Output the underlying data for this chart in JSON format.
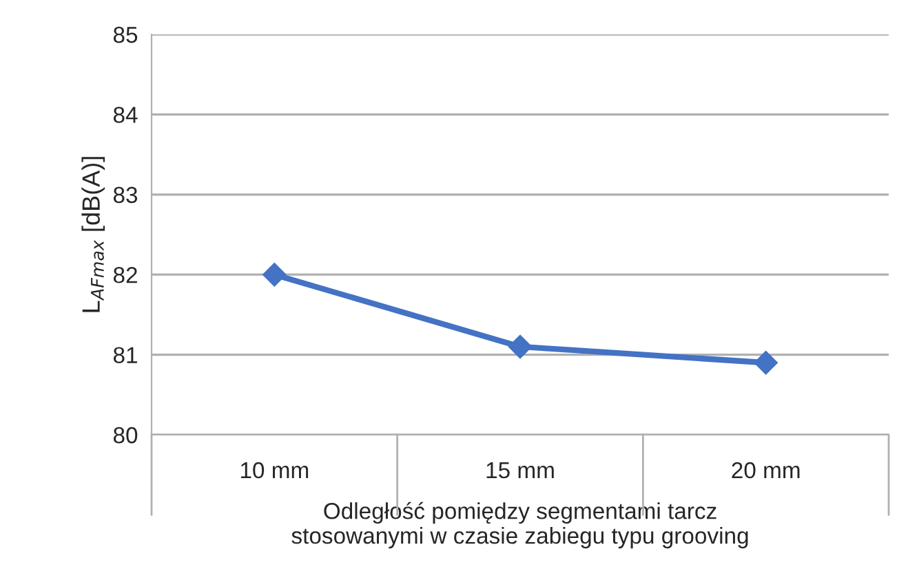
{
  "chart_data": {
    "type": "line",
    "categories": [
      "10 mm",
      "15 mm",
      "20 mm"
    ],
    "values": [
      82.0,
      81.1,
      80.9
    ],
    "color": "#4472c4",
    "ylim": [
      80,
      85
    ],
    "yticks": [
      80,
      81,
      82,
      83,
      84,
      85
    ],
    "ylabel": "L$_{AFmax}$ [dB(A)]",
    "xlabel": "Odległość pomiędzy segmentami tarcz\nstosowanymi w czasie zabiegu typu grooving",
    "grid": "y",
    "marker": "diamond",
    "line_style": "solid"
  }
}
